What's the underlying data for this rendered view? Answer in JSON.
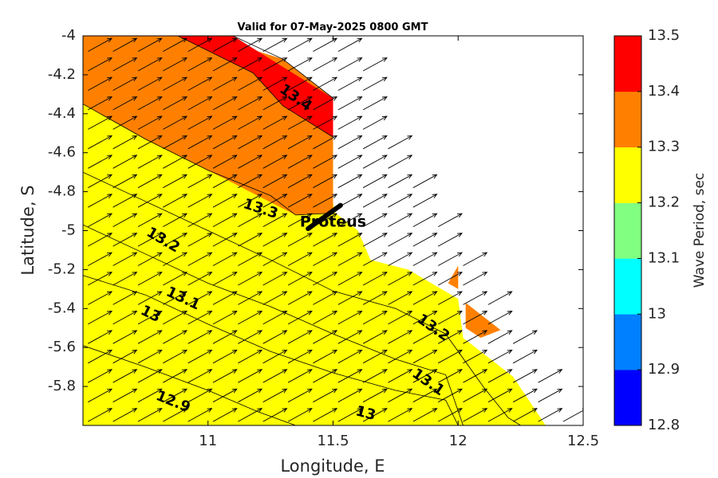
{
  "chart_data": {
    "type": "heatmap",
    "title": "Valid for 07-May-2025 0800 GMT",
    "xlabel": "Longitude, E",
    "ylabel": "Latitude, S",
    "xlim": [
      10.5,
      12.5
    ],
    "ylim": [
      -6.0,
      -4.0
    ],
    "x_ticks": [
      11,
      11.5,
      12,
      12.5
    ],
    "x_tick_labels": [
      "11",
      "11.5",
      "12",
      "12.5"
    ],
    "y_ticks": [
      -4,
      -4.2,
      -4.4,
      -4.6,
      -4.8,
      -5,
      -5.2,
      -5.4,
      -5.6,
      -5.8
    ],
    "y_tick_labels": [
      "-4",
      "-4.2",
      "-4.4",
      "-4.6",
      "-4.8",
      "-5",
      "-5.2",
      "-5.4",
      "-5.6",
      "-5.8"
    ],
    "colorbar": {
      "label": "Wave Period, sec",
      "levels": [
        12.8,
        12.9,
        13.0,
        13.1,
        13.2,
        13.3,
        13.4,
        13.5
      ],
      "tick_labels": [
        "12.8",
        "12.9",
        "13",
        "13.1",
        "13.2",
        "13.3",
        "13.4",
        "13.5"
      ],
      "colors": [
        "#0000ff",
        "#0080ff",
        "#00ffff",
        "#80ff80",
        "#ffff00",
        "#ff8000",
        "#ff0000"
      ]
    },
    "bands": [
      {
        "range": [
          12.8,
          12.9
        ],
        "polygon": [
          [
            10.5,
            -5.59
          ],
          [
            10.75,
            -5.7
          ],
          [
            11.0,
            -5.82
          ],
          [
            11.2,
            -5.93
          ],
          [
            11.35,
            -6.0
          ],
          [
            10.5,
            -6.0
          ]
        ]
      },
      {
        "range": [
          12.9,
          13.0
        ],
        "polygon": [
          [
            10.5,
            -5.23
          ],
          [
            10.75,
            -5.33
          ],
          [
            11.0,
            -5.48
          ],
          [
            11.25,
            -5.62
          ],
          [
            11.5,
            -5.73
          ],
          [
            11.75,
            -5.82
          ],
          [
            11.95,
            -5.87
          ],
          [
            12.0,
            -6.0
          ],
          [
            10.5,
            -6.0
          ]
        ]
      },
      {
        "range": [
          13.0,
          13.1
        ],
        "polygon": [
          [
            10.5,
            -4.97
          ],
          [
            10.75,
            -5.12
          ],
          [
            11.0,
            -5.27
          ],
          [
            11.25,
            -5.39
          ],
          [
            11.5,
            -5.53
          ],
          [
            11.75,
            -5.66
          ],
          [
            11.95,
            -5.74
          ],
          [
            12.02,
            -6.0
          ],
          [
            10.5,
            -6.0
          ]
        ]
      },
      {
        "range": [
          13.1,
          13.2
        ],
        "polygon": [
          [
            10.5,
            -4.7
          ],
          [
            10.75,
            -4.85
          ],
          [
            11.0,
            -5.0
          ],
          [
            11.25,
            -5.15
          ],
          [
            11.5,
            -5.31
          ],
          [
            11.75,
            -5.4
          ],
          [
            11.95,
            -5.53
          ],
          [
            12.1,
            -5.8
          ],
          [
            12.2,
            -5.96
          ],
          [
            12.25,
            -6.0
          ],
          [
            10.5,
            -6.0
          ]
        ]
      },
      {
        "range": [
          13.2,
          13.3
        ],
        "polygon": [
          [
            10.5,
            -4.35
          ],
          [
            10.75,
            -4.53
          ],
          [
            11.0,
            -4.69
          ],
          [
            11.25,
            -4.82
          ],
          [
            11.5,
            -4.89
          ],
          [
            11.5,
            -4.86
          ],
          [
            11.51,
            -4.91
          ],
          [
            11.6,
            -5.0
          ],
          [
            11.65,
            -5.15
          ],
          [
            11.8,
            -5.2
          ],
          [
            12.0,
            -5.35
          ],
          [
            12.02,
            -5.55
          ],
          [
            12.22,
            -5.75
          ],
          [
            12.35,
            -6.0
          ],
          [
            10.5,
            -6.0
          ]
        ]
      },
      {
        "range": [
          13.3,
          13.4
        ],
        "polygon": [
          [
            10.5,
            -4.0
          ],
          [
            11.0,
            -4.0
          ],
          [
            11.3,
            -4.12
          ],
          [
            11.5,
            -4.32
          ],
          [
            11.5,
            -4.91
          ],
          [
            11.35,
            -4.92
          ],
          [
            11.0,
            -4.69
          ],
          [
            10.75,
            -4.53
          ],
          [
            10.5,
            -4.35
          ]
        ]
      },
      {
        "range": [
          13.4,
          13.5
        ],
        "polygon": [
          [
            10.88,
            -4.0
          ],
          [
            11.1,
            -4.0
          ],
          [
            11.5,
            -4.32
          ],
          [
            11.5,
            -4.52
          ],
          [
            11.3,
            -4.36
          ],
          [
            11.18,
            -4.19
          ]
        ]
      },
      {
        "range": [
          13.3,
          13.4
        ],
        "polygon": [
          [
            11.96,
            -5.27
          ],
          [
            12.0,
            -5.18
          ],
          [
            12.0,
            -5.3
          ]
        ]
      },
      {
        "range": [
          13.3,
          13.4
        ],
        "polygon": [
          [
            12.03,
            -5.37
          ],
          [
            12.17,
            -5.51
          ],
          [
            12.09,
            -5.55
          ],
          [
            12.03,
            -5.5
          ]
        ]
      }
    ],
    "contours": [
      {
        "level": 12.9,
        "points": [
          [
            10.5,
            -5.59
          ],
          [
            10.75,
            -5.7
          ],
          [
            11.0,
            -5.82
          ],
          [
            11.2,
            -5.93
          ],
          [
            11.35,
            -6.0
          ]
        ]
      },
      {
        "level": 13.0,
        "points": [
          [
            10.5,
            -5.23
          ],
          [
            10.75,
            -5.33
          ],
          [
            11.0,
            -5.48
          ],
          [
            11.25,
            -5.62
          ],
          [
            11.5,
            -5.73
          ],
          [
            11.75,
            -5.82
          ],
          [
            11.95,
            -5.87
          ],
          [
            12.0,
            -6.0
          ]
        ]
      },
      {
        "level": 13.1,
        "points": [
          [
            10.5,
            -4.97
          ],
          [
            10.75,
            -5.12
          ],
          [
            11.0,
            -5.27
          ],
          [
            11.25,
            -5.39
          ],
          [
            11.5,
            -5.53
          ],
          [
            11.75,
            -5.66
          ],
          [
            11.95,
            -5.74
          ],
          [
            12.02,
            -6.0
          ]
        ]
      },
      {
        "level": 13.2,
        "points": [
          [
            10.5,
            -4.7
          ],
          [
            10.75,
            -4.85
          ],
          [
            11.0,
            -5.0
          ],
          [
            11.25,
            -5.15
          ],
          [
            11.5,
            -5.31
          ],
          [
            11.75,
            -5.4
          ],
          [
            11.95,
            -5.53
          ],
          [
            12.1,
            -5.8
          ],
          [
            12.2,
            -5.96
          ],
          [
            12.25,
            -6.0
          ]
        ]
      },
      {
        "level": 13.3,
        "points": [
          [
            10.5,
            -4.35
          ],
          [
            10.75,
            -4.53
          ],
          [
            11.0,
            -4.69
          ],
          [
            11.25,
            -4.82
          ],
          [
            11.35,
            -4.92
          ],
          [
            11.5,
            -4.91
          ]
        ]
      },
      {
        "level": 13.4,
        "points": [
          [
            10.88,
            -4.0
          ],
          [
            11.18,
            -4.19
          ],
          [
            11.3,
            -4.36
          ],
          [
            11.5,
            -4.52
          ]
        ]
      },
      {
        "level": 13.4,
        "points": [
          [
            11.5,
            -4.32
          ],
          [
            11.3,
            -4.12
          ],
          [
            11.1,
            -4.0
          ]
        ]
      }
    ],
    "contour_labels": [
      {
        "text": "13.4",
        "x": 11.35,
        "y": -4.32,
        "angle": 35
      },
      {
        "text": "13.3",
        "x": 11.21,
        "y": -4.89,
        "angle": 18
      },
      {
        "text": "13.2",
        "x": 10.82,
        "y": -5.05,
        "angle": 30
      },
      {
        "text": "13.1",
        "x": 10.9,
        "y": -5.35,
        "angle": 25
      },
      {
        "text": "13",
        "x": 10.77,
        "y": -5.43,
        "angle": 27
      },
      {
        "text": "12.9",
        "x": 10.86,
        "y": -5.88,
        "angle": 22
      },
      {
        "text": "13.2",
        "x": 11.9,
        "y": -5.5,
        "angle": 35
      },
      {
        "text": "13.1",
        "x": 11.88,
        "y": -5.78,
        "angle": 35
      },
      {
        "text": "13",
        "x": 11.63,
        "y": -5.94,
        "angle": 15
      }
    ],
    "annotation": {
      "text": "Proteus",
      "x": 11.5,
      "y": -4.98
    },
    "ship_track": [
      [
        11.4,
        -4.99
      ],
      [
        11.53,
        -4.87
      ]
    ],
    "arrows": {
      "dx": 0.095,
      "dy": 0.067,
      "spacing": [
        0.1,
        0.1
      ]
    }
  }
}
